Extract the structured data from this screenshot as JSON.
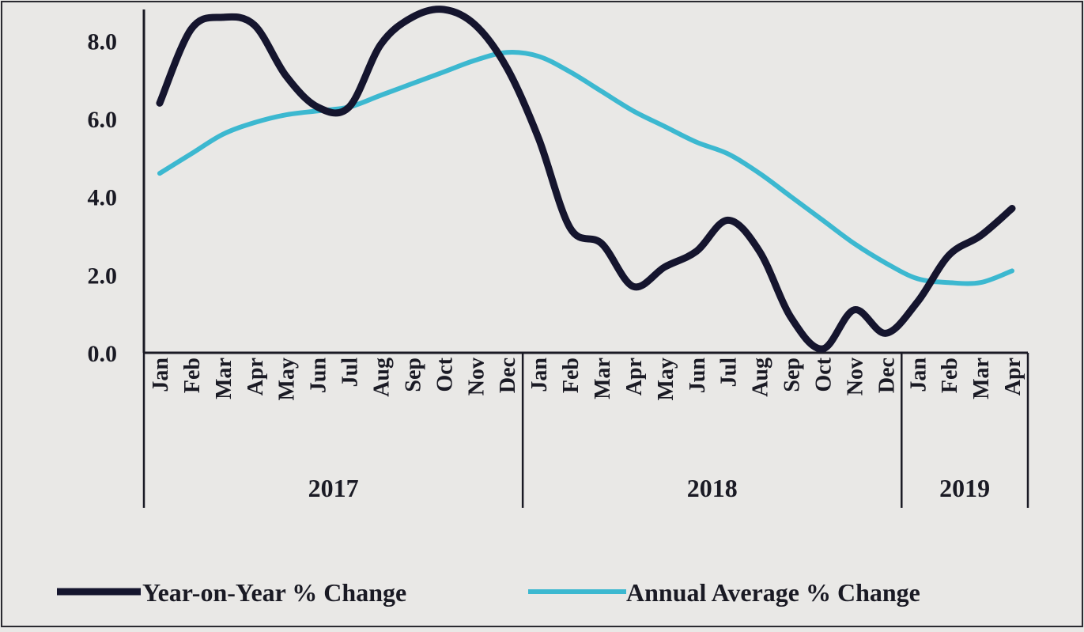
{
  "chart_data": {
    "type": "line",
    "title": "",
    "xlabel": "",
    "ylabel": "",
    "ylim": [
      0,
      8.8
    ],
    "yticks": [
      "0.0",
      "2.0",
      "4.0",
      "6.0",
      "8.0"
    ],
    "categories": [
      "Jan",
      "Feb",
      "Mar",
      "Apr",
      "May",
      "Jun",
      "Jul",
      "Aug",
      "Sep",
      "Oct",
      "Nov",
      "Dec",
      "Jan",
      "Feb",
      "Mar",
      "Apr",
      "May",
      "Jun",
      "Jul",
      "Aug",
      "Sep",
      "Oct",
      "Nov",
      "Dec",
      "Jan",
      "Feb",
      "Mar",
      "Apr"
    ],
    "years": [
      {
        "label": "2017",
        "start": 0,
        "end": 11
      },
      {
        "label": "2018",
        "start": 12,
        "end": 23
      },
      {
        "label": "2019",
        "start": 24,
        "end": 27
      }
    ],
    "series": [
      {
        "name": "Year-on-Year % Change",
        "color": "#15152e",
        "values": [
          6.4,
          8.3,
          8.6,
          8.4,
          7.1,
          6.3,
          6.3,
          7.9,
          8.6,
          8.8,
          8.4,
          7.3,
          5.5,
          3.2,
          2.8,
          1.7,
          2.2,
          2.6,
          3.4,
          2.6,
          0.9,
          0.1,
          1.1,
          0.5,
          1.3,
          2.5,
          3.0,
          3.7
        ]
      },
      {
        "name": "Annual Average % Change",
        "color": "#3cb8d0",
        "values": [
          4.6,
          5.1,
          5.6,
          5.9,
          6.1,
          6.2,
          6.3,
          6.6,
          6.9,
          7.2,
          7.5,
          7.7,
          7.6,
          7.2,
          6.7,
          6.2,
          5.8,
          5.4,
          5.1,
          4.6,
          4.0,
          3.4,
          2.8,
          2.3,
          1.9,
          1.8,
          1.8,
          2.1
        ]
      }
    ]
  }
}
